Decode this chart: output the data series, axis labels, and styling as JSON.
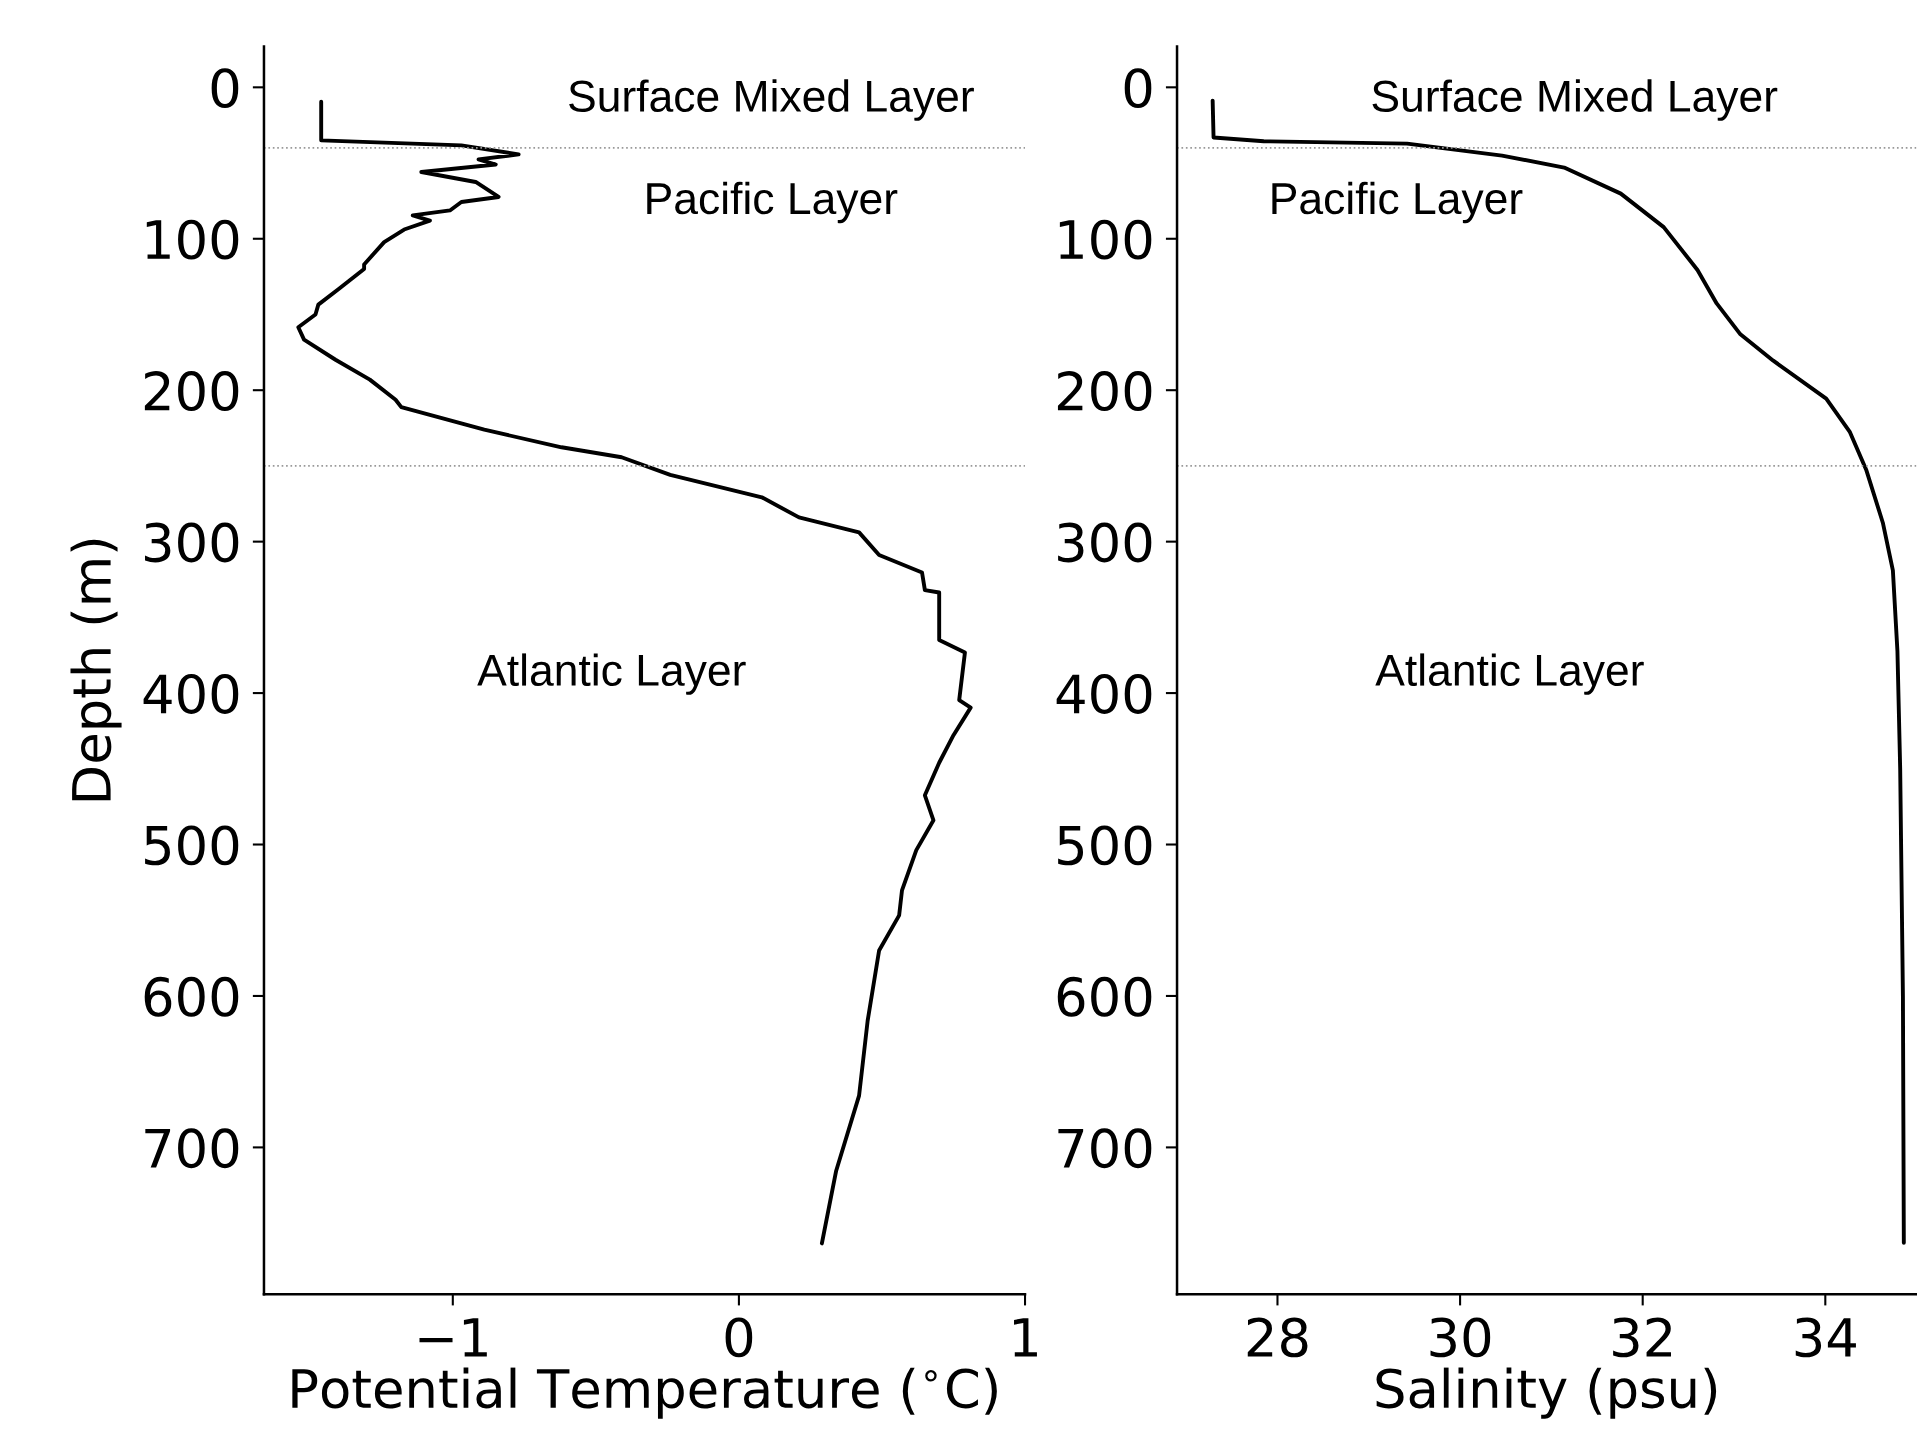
{
  "chart_data": [
    {
      "type": "line",
      "xlabel": "Potential Temperature ($^{∘}$C)",
      "ylabel": "Depth (m)",
      "xlim": [
        -1.66,
        1.0
      ],
      "xticks": [
        {
          "value": -1,
          "label": "−1"
        },
        0,
        1
      ],
      "ylim": [
        797,
        -27
      ],
      "yticks": [
        0,
        100,
        200,
        300,
        400,
        500,
        600,
        700
      ],
      "grid": false,
      "line_style": "solid",
      "marker": "none",
      "series": [
        {
          "color": "#000000",
          "x": [
            -1.46,
            -1.46,
            -0.97,
            -0.77,
            -0.91,
            -0.85,
            -1.11,
            -0.92,
            -0.84,
            -0.97,
            -1.01,
            -1.14,
            -1.08,
            -1.17,
            -1.24,
            -1.31,
            -1.31,
            -1.4,
            -1.47,
            -1.48,
            -1.54,
            -1.52,
            -1.41,
            -1.29,
            -1.2,
            -1.18,
            -0.89,
            -0.62,
            -0.41,
            -0.24,
            0.08,
            0.21,
            0.42,
            0.49,
            0.64,
            0.65,
            0.7,
            0.7,
            0.7,
            0.79,
            0.77,
            0.81,
            0.75,
            0.7,
            0.65,
            0.68,
            0.62,
            0.57,
            0.56,
            0.49,
            0.45,
            0.42,
            0.34,
            0.29
          ],
          "values": [
            9.5,
            35,
            38.3,
            44.3,
            47.6,
            51,
            55.9,
            62.5,
            72.4,
            75.7,
            81.3,
            84.6,
            88,
            93.9,
            102.2,
            117,
            120,
            133.4,
            143.5,
            150,
            158.4,
            166.6,
            179.9,
            193,
            206.3,
            211.2,
            226.1,
            237.7,
            244.3,
            255.9,
            270.7,
            284,
            293.9,
            308.8,
            320.4,
            332,
            333.6,
            358.4,
            365,
            373.2,
            404.6,
            409.6,
            427.8,
            446,
            467.5,
            484,
            503.7,
            530.3,
            546.8,
            570,
            616.3,
            665.8,
            715.4,
            763.4
          ]
        }
      ],
      "ref_lines": [
        {
          "axis": "y",
          "value": 40,
          "color": "#999999",
          "line_style": "dotted"
        },
        {
          "axis": "y",
          "value": 250,
          "color": "#999999",
          "line_style": "dotted"
        }
      ],
      "annotations": [
        "Surface Mixed Layer",
        "Pacific Layer",
        "Atlantic Layer"
      ]
    },
    {
      "type": "line",
      "xlabel": "Salinity (psu)",
      "xlim": [
        26.9,
        35.0
      ],
      "xticks": [
        28,
        30,
        32,
        34
      ],
      "ylim": [
        797,
        -27
      ],
      "yticks": [
        0,
        100,
        200,
        300,
        400,
        500,
        600,
        700
      ],
      "grid": false,
      "line_style": "solid",
      "marker": "none",
      "series": [
        {
          "color": "#000000",
          "x": [
            27.29,
            27.3,
            27.85,
            29.42,
            30.46,
            31.14,
            31.76,
            32.23,
            32.6,
            32.81,
            33.07,
            33.43,
            34.01,
            34.27,
            34.45,
            34.63,
            34.74,
            34.79,
            34.82,
            34.85,
            34.86
          ],
          "values": [
            8.8,
            33.1,
            35.6,
            37.2,
            45.1,
            53,
            70.2,
            92.3,
            120.6,
            142.7,
            163.1,
            180.5,
            205.6,
            227.7,
            252.9,
            287.5,
            319,
            372.5,
            450,
            600,
            763
          ]
        }
      ],
      "ref_lines": [
        {
          "axis": "y",
          "value": 40,
          "color": "#999999",
          "line_style": "dotted"
        },
        {
          "axis": "y",
          "value": 250,
          "color": "#999999",
          "line_style": "dotted"
        }
      ],
      "annotations": [
        "Surface Mixed Layer",
        "Pacific Layer",
        "Atlantic Layer"
      ]
    }
  ]
}
